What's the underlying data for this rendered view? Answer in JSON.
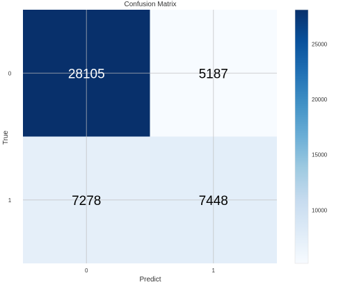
{
  "chart_data": {
    "type": "heatmap",
    "title": "Confusion Matrix",
    "xlabel": "Predict",
    "ylabel": "True",
    "x_categories": [
      "0",
      "1"
    ],
    "y_categories": [
      "0",
      "1"
    ],
    "matrix": [
      [
        28105,
        5187
      ],
      [
        7278,
        7448
      ]
    ],
    "colormap": "Blues",
    "colorbar": {
      "vmin": 5187,
      "vmax": 28105,
      "ticks": [
        10000,
        15000,
        20000,
        25000
      ]
    },
    "grid": true
  }
}
